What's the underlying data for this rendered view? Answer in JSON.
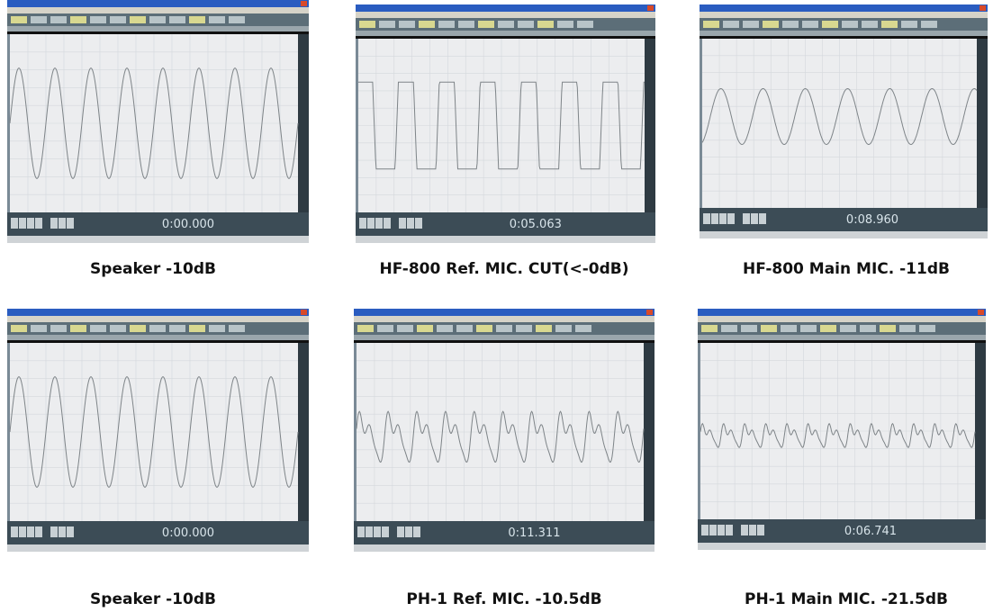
{
  "panels": [
    {
      "time": "0:00.000",
      "caption": "Speaker -10dB"
    },
    {
      "time": "0:05.063",
      "caption": "HF-800 Ref. MIC. CUT(<-0dB)"
    },
    {
      "time": "0:08.960",
      "caption": "HF-800 Main MIC. -11dB"
    },
    {
      "time": "0:00.000",
      "caption": "Speaker -10dB"
    },
    {
      "time": "0:11.311",
      "caption": "PH-1 Ref. MIC. -10.5dB"
    },
    {
      "time": "0:06.741",
      "caption": "PH-1 Main MIC. -21.5dB"
    }
  ]
}
